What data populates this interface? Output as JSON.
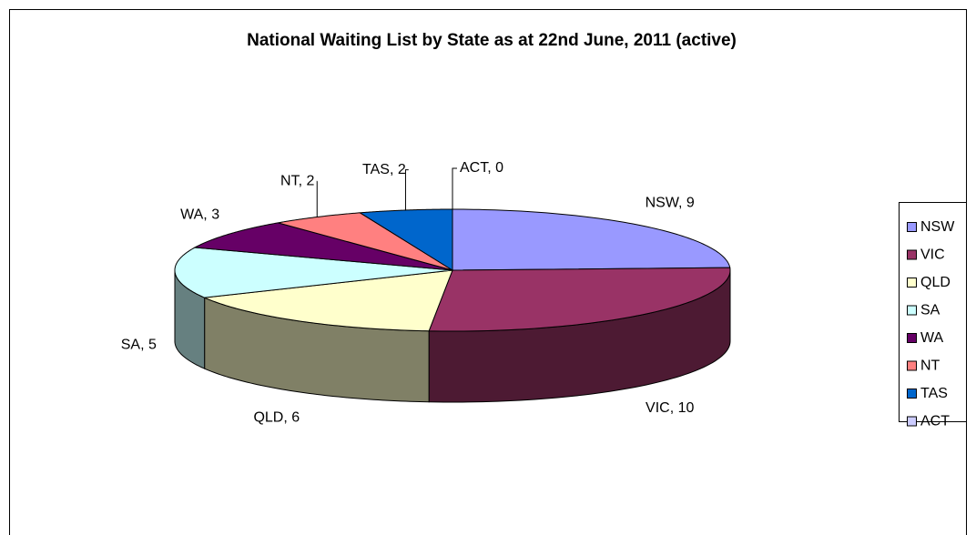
{
  "chart_data": {
    "type": "pie3d",
    "title": "National Waiting List by State as at 22nd June, 2011 (active)",
    "categories": [
      "NSW",
      "VIC",
      "QLD",
      "SA",
      "WA",
      "NT",
      "TAS",
      "ACT"
    ],
    "values": [
      9,
      10,
      6,
      5,
      3,
      2,
      2,
      0
    ],
    "value_labels": [
      "NSW, 9",
      "VIC, 10",
      "QLD, 6",
      "SA, 5",
      "WA, 3",
      "NT, 2",
      "TAS, 2",
      "ACT, 0"
    ],
    "colors": [
      "#9999ff",
      "#993366",
      "#ffffcc",
      "#ccffff",
      "#660066",
      "#ff8080",
      "#0066cc",
      "#ccccff"
    ],
    "legend": "right"
  }
}
